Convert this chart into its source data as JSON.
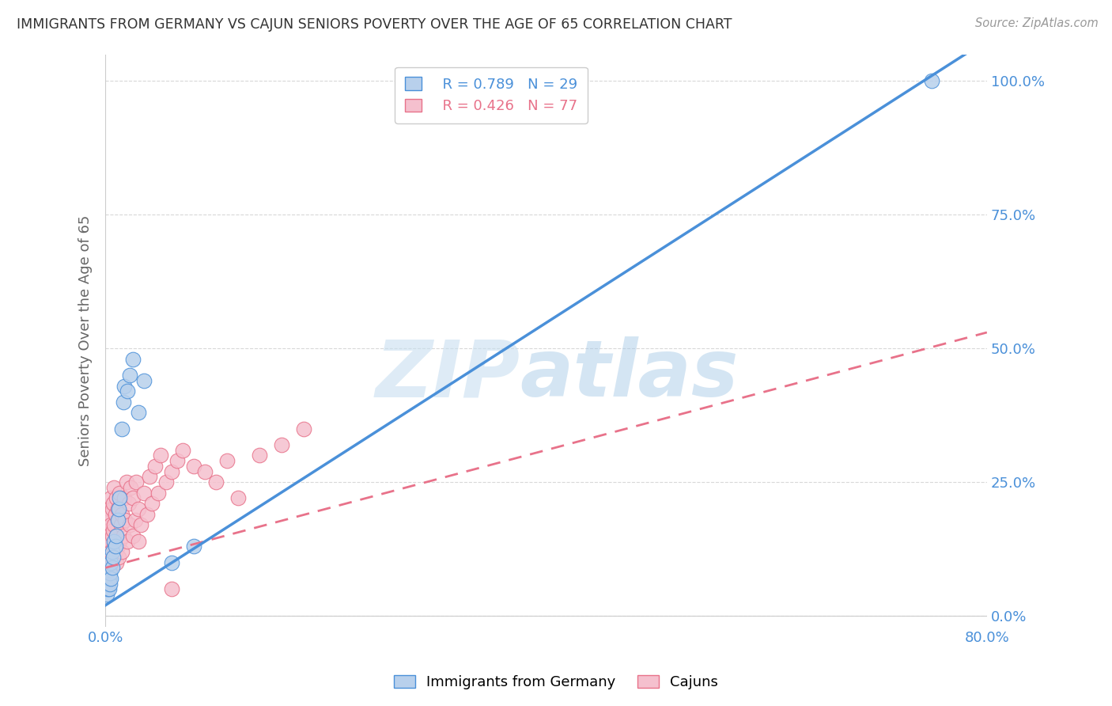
{
  "title": "IMMIGRANTS FROM GERMANY VS CAJUN SENIORS POVERTY OVER THE AGE OF 65 CORRELATION CHART",
  "source": "Source: ZipAtlas.com",
  "ylabel": "Seniors Poverty Over the Age of 65",
  "watermark_zip": "ZIP",
  "watermark_atlas": "atlas",
  "legend_blue_r": "R = 0.789",
  "legend_blue_n": "N = 29",
  "legend_pink_r": "R = 0.426",
  "legend_pink_n": "N = 77",
  "legend_label_blue": "Immigrants from Germany",
  "legend_label_pink": "Cajuns",
  "blue_scatter_color": "#b8d0ec",
  "blue_line_color": "#4a90d9",
  "pink_scatter_color": "#f5c0ce",
  "pink_line_color": "#e8728a",
  "background_color": "#ffffff",
  "grid_color": "#d8d8d8",
  "blue_regression_slope": 1.32,
  "blue_regression_intercept": 0.02,
  "pink_regression_slope": 0.55,
  "pink_regression_intercept": 0.09,
  "germany_x": [
    0.001,
    0.002,
    0.002,
    0.003,
    0.003,
    0.004,
    0.004,
    0.005,
    0.005,
    0.006,
    0.006,
    0.007,
    0.008,
    0.009,
    0.01,
    0.011,
    0.012,
    0.013,
    0.015,
    0.016,
    0.017,
    0.02,
    0.022,
    0.025,
    0.03,
    0.035,
    0.06,
    0.08,
    0.75
  ],
  "germany_y": [
    0.04,
    0.05,
    0.06,
    0.05,
    0.07,
    0.06,
    0.08,
    0.07,
    0.1,
    0.09,
    0.12,
    0.11,
    0.14,
    0.13,
    0.15,
    0.18,
    0.2,
    0.22,
    0.35,
    0.4,
    0.43,
    0.42,
    0.45,
    0.48,
    0.38,
    0.44,
    0.1,
    0.13,
    1.0
  ],
  "cajun_x": [
    0.0,
    0.001,
    0.001,
    0.001,
    0.002,
    0.002,
    0.002,
    0.002,
    0.003,
    0.003,
    0.003,
    0.003,
    0.004,
    0.004,
    0.004,
    0.005,
    0.005,
    0.005,
    0.005,
    0.006,
    0.006,
    0.006,
    0.007,
    0.007,
    0.007,
    0.008,
    0.008,
    0.008,
    0.009,
    0.009,
    0.01,
    0.01,
    0.01,
    0.011,
    0.011,
    0.012,
    0.012,
    0.013,
    0.013,
    0.014,
    0.015,
    0.015,
    0.016,
    0.017,
    0.018,
    0.019,
    0.02,
    0.021,
    0.022,
    0.023,
    0.025,
    0.025,
    0.027,
    0.028,
    0.03,
    0.03,
    0.032,
    0.035,
    0.038,
    0.04,
    0.042,
    0.045,
    0.048,
    0.05,
    0.055,
    0.06,
    0.065,
    0.07,
    0.08,
    0.09,
    0.1,
    0.11,
    0.12,
    0.14,
    0.16,
    0.18,
    0.06
  ],
  "cajun_y": [
    0.1,
    0.08,
    0.12,
    0.15,
    0.09,
    0.11,
    0.14,
    0.18,
    0.1,
    0.13,
    0.16,
    0.2,
    0.11,
    0.14,
    0.19,
    0.09,
    0.12,
    0.17,
    0.22,
    0.1,
    0.15,
    0.2,
    0.11,
    0.16,
    0.21,
    0.13,
    0.17,
    0.24,
    0.12,
    0.19,
    0.1,
    0.15,
    0.22,
    0.13,
    0.2,
    0.11,
    0.18,
    0.14,
    0.23,
    0.17,
    0.12,
    0.19,
    0.15,
    0.22,
    0.18,
    0.25,
    0.14,
    0.21,
    0.17,
    0.24,
    0.15,
    0.22,
    0.18,
    0.25,
    0.14,
    0.2,
    0.17,
    0.23,
    0.19,
    0.26,
    0.21,
    0.28,
    0.23,
    0.3,
    0.25,
    0.27,
    0.29,
    0.31,
    0.28,
    0.27,
    0.25,
    0.29,
    0.22,
    0.3,
    0.32,
    0.35,
    0.05
  ],
  "xlim": [
    0.0,
    0.8
  ],
  "ylim": [
    -0.02,
    1.05
  ],
  "xtick_positions": [
    0.0,
    0.16,
    0.32,
    0.48,
    0.64,
    0.8
  ],
  "ytick_positions": [
    0.0,
    0.25,
    0.5,
    0.75,
    1.0
  ],
  "ytick_labels_right": [
    "0.0%",
    "25.0%",
    "50.0%",
    "75.0%",
    "100.0%"
  ]
}
